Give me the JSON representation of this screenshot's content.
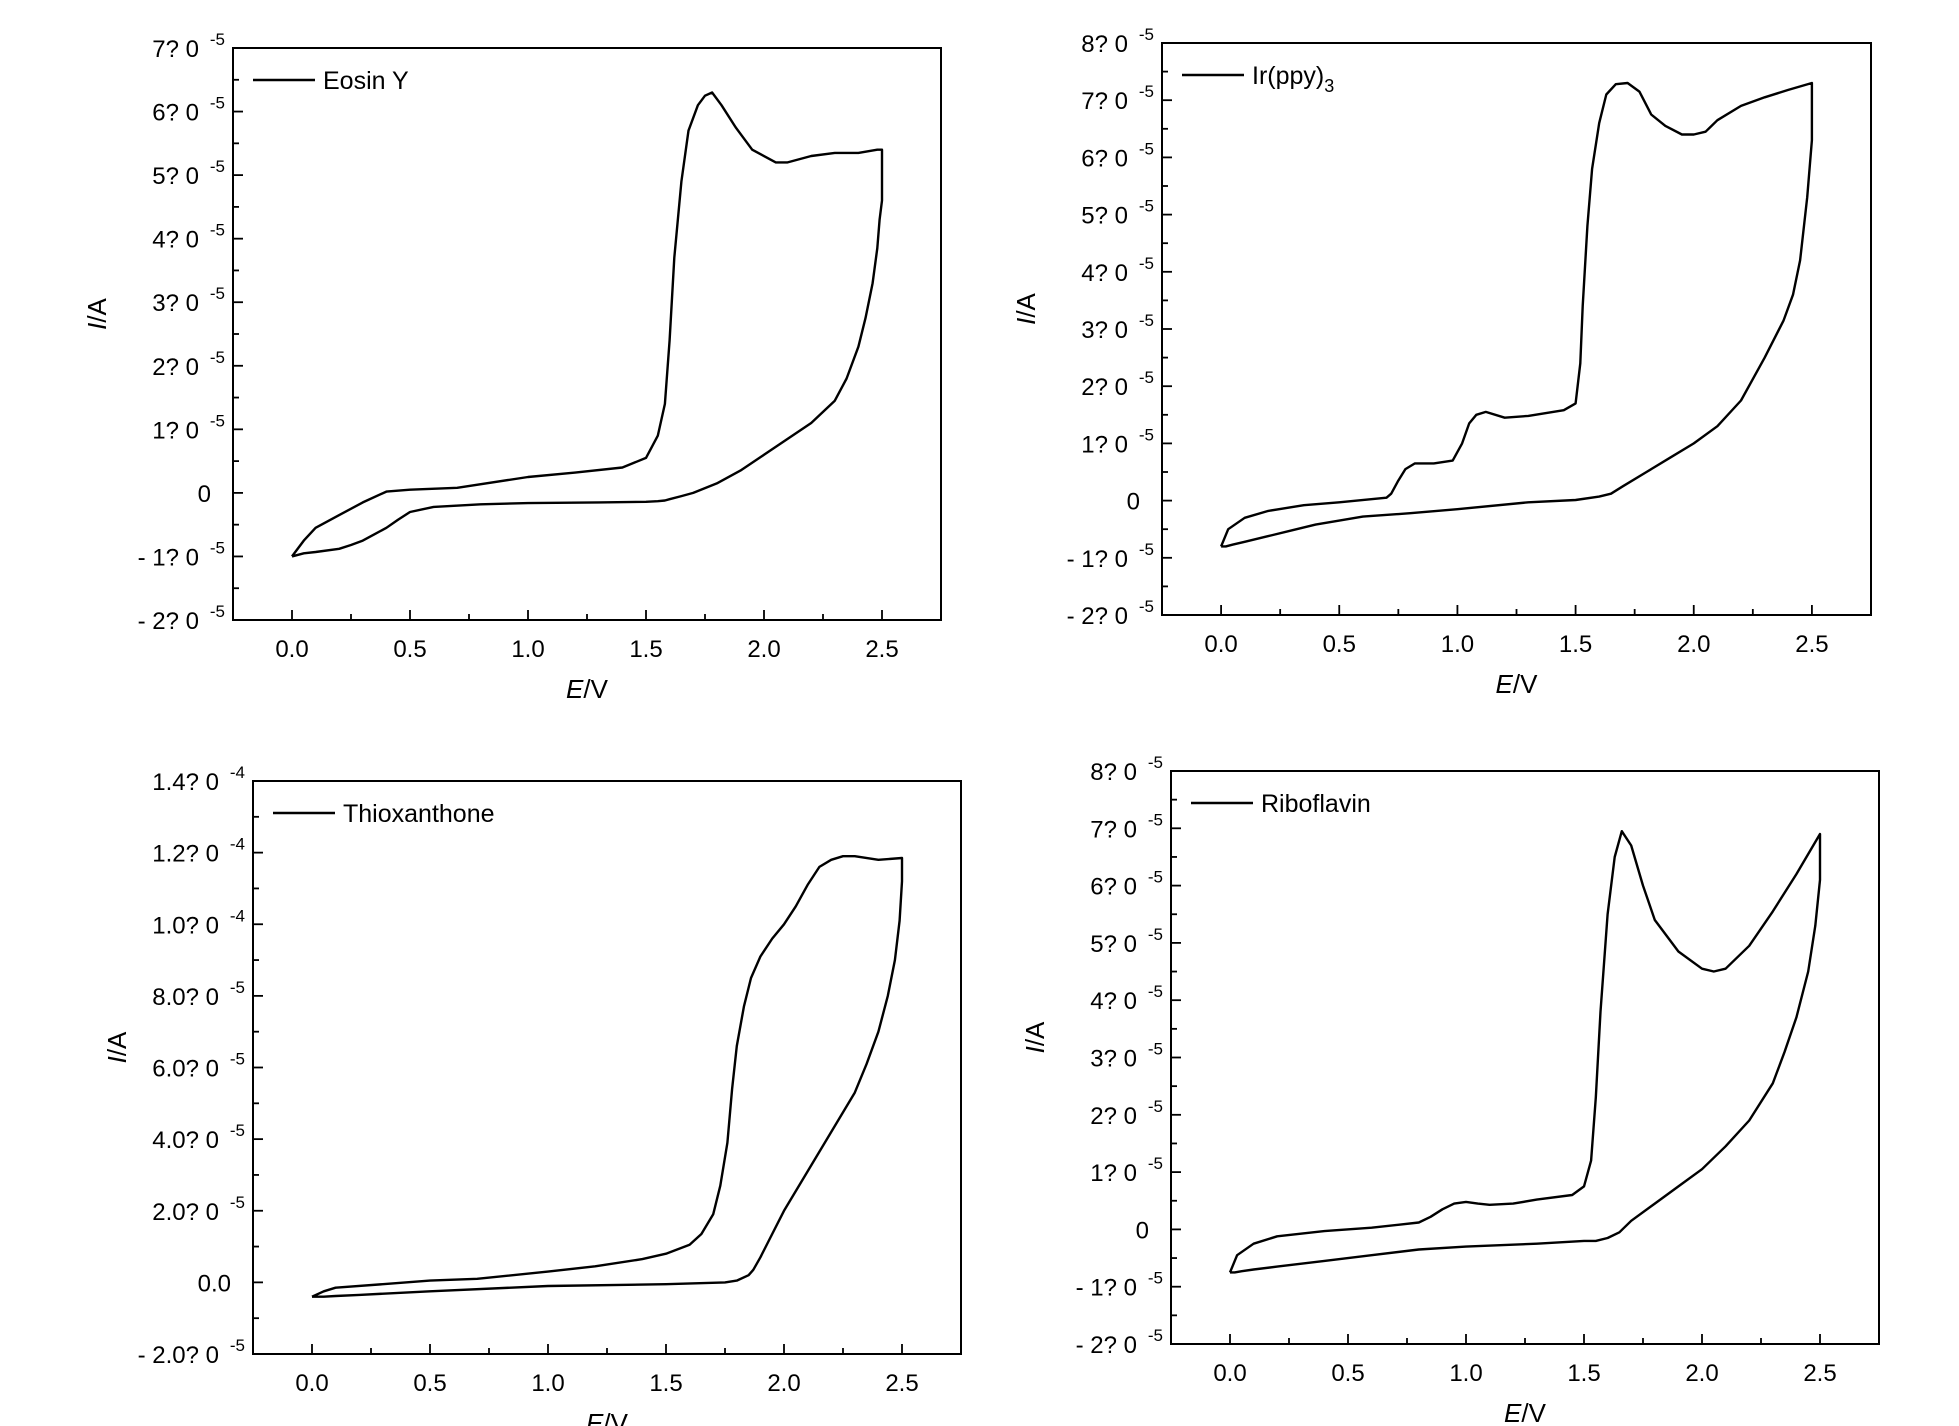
{
  "chart_data": [
    {
      "type": "line",
      "legend": "Eosin Y",
      "xlabel_italic": "E",
      "xlabel_rest": "/V",
      "ylabel_italic": "I",
      "ylabel_rest": "/A",
      "xlim": [
        -0.25,
        2.75
      ],
      "ylim": [
        -2e-05,
        7e-05
      ],
      "x_ticks": [
        {
          "value": 0.0,
          "label": "0.0"
        },
        {
          "value": 0.5,
          "label": "0.5"
        },
        {
          "value": 1.0,
          "label": "1.0"
        },
        {
          "value": 1.5,
          "label": "1.5"
        },
        {
          "value": 2.0,
          "label": "2.0"
        },
        {
          "value": 2.5,
          "label": "2.5"
        }
      ],
      "y_ticks": [
        {
          "value": 7e-05,
          "label": "7?  0",
          "exp": "-5"
        },
        {
          "value": 6e-05,
          "label": "6?  0",
          "exp": "-5"
        },
        {
          "value": 5e-05,
          "label": "5?  0",
          "exp": "-5"
        },
        {
          "value": 4e-05,
          "label": "4?  0",
          "exp": "-5"
        },
        {
          "value": 3e-05,
          "label": "3?  0",
          "exp": "-5"
        },
        {
          "value": 2e-05,
          "label": "2?  0",
          "exp": "-5"
        },
        {
          "value": 1e-05,
          "label": "1?  0",
          "exp": "-5"
        },
        {
          "value": 0,
          "label": "0",
          "exp": ""
        },
        {
          "value": -1e-05,
          "label": "- 1?  0",
          "exp": "-5"
        },
        {
          "value": -2e-05,
          "label": "- 2?  0",
          "exp": "-5"
        }
      ],
      "series": [
        {
          "x": [
            0.0,
            0.05,
            0.1,
            0.2,
            0.3,
            0.4,
            0.5,
            0.7,
            1.0,
            1.2,
            1.4,
            1.5,
            1.55,
            1.58,
            1.6,
            1.62,
            1.65,
            1.68,
            1.72,
            1.75,
            1.78,
            1.82,
            1.88,
            1.95,
            2.05,
            2.1,
            2.2,
            2.3,
            2.4,
            2.48,
            2.5,
            2.5,
            2.49,
            2.48,
            2.46,
            2.43,
            2.4,
            2.35,
            2.3,
            2.2,
            2.1,
            2.0,
            1.9,
            1.8,
            1.7,
            1.65,
            1.6,
            1.58,
            1.55,
            1.5,
            1.3,
            1.0,
            0.8,
            0.6,
            0.5,
            0.45,
            0.4,
            0.35,
            0.3,
            0.25,
            0.2,
            0.1,
            0.05,
            0.02,
            0.0
          ],
          "y": [
            -1e-05,
            -7.5e-06,
            -5.5e-06,
            -3.5e-06,
            -1.5e-06,
            2e-07,
            5e-07,
            8e-07,
            2.5e-06,
            3.2e-06,
            4e-06,
            5.5e-06,
            9e-06,
            1.4e-05,
            2.4e-05,
            3.7e-05,
            4.9e-05,
            5.7e-05,
            6.1e-05,
            6.25e-05,
            6.3e-05,
            6.1e-05,
            5.75e-05,
            5.4e-05,
            5.2e-05,
            5.2e-05,
            5.3e-05,
            5.35e-05,
            5.35e-05,
            5.4e-05,
            5.4e-05,
            4.6e-05,
            4.3e-05,
            3.85e-05,
            3.3e-05,
            2.75e-05,
            2.3e-05,
            1.8e-05,
            1.45e-05,
            1.1e-05,
            8.5e-06,
            6e-06,
            3.5e-06,
            1.5e-06,
            0.0,
            -5e-07,
            -1e-06,
            -1.2e-06,
            -1.3e-06,
            -1.4e-06,
            -1.5e-06,
            -1.6e-06,
            -1.8e-06,
            -2.2e-06,
            -3e-06,
            -4.2e-06,
            -5.5e-06,
            -6.5e-06,
            -7.5e-06,
            -8.2e-06,
            -8.8e-06,
            -9.3e-06,
            -9.5e-06,
            -9.8e-06,
            -1e-05
          ]
        }
      ]
    },
    {
      "type": "line",
      "legend": "Ir(ppy)",
      "legend_sub": "3",
      "xlabel_italic": "E",
      "xlabel_rest": "/V",
      "ylabel_italic": "I",
      "ylabel_rest": "/A",
      "xlim": [
        -0.25,
        2.75
      ],
      "ylim": [
        -2e-05,
        8e-05
      ],
      "x_ticks": [
        {
          "value": 0.0,
          "label": "0.0"
        },
        {
          "value": 0.5,
          "label": "0.5"
        },
        {
          "value": 1.0,
          "label": "1.0"
        },
        {
          "value": 1.5,
          "label": "1.5"
        },
        {
          "value": 2.0,
          "label": "2.0"
        },
        {
          "value": 2.5,
          "label": "2.5"
        }
      ],
      "y_ticks": [
        {
          "value": 8e-05,
          "label": "8?  0",
          "exp": "-5"
        },
        {
          "value": 7e-05,
          "label": "7?  0",
          "exp": "-5"
        },
        {
          "value": 6e-05,
          "label": "6?  0",
          "exp": "-5"
        },
        {
          "value": 5e-05,
          "label": "5?  0",
          "exp": "-5"
        },
        {
          "value": 4e-05,
          "label": "4?  0",
          "exp": "-5"
        },
        {
          "value": 3e-05,
          "label": "3?  0",
          "exp": "-5"
        },
        {
          "value": 2e-05,
          "label": "2?  0",
          "exp": "-5"
        },
        {
          "value": 1e-05,
          "label": "1?  0",
          "exp": "-5"
        },
        {
          "value": 0,
          "label": "0",
          "exp": ""
        },
        {
          "value": -1e-05,
          "label": "- 1?  0",
          "exp": "-5"
        },
        {
          "value": -2e-05,
          "label": "- 2?  0",
          "exp": "-5"
        }
      ],
      "series": [
        {
          "x": [
            0.0,
            0.03,
            0.1,
            0.2,
            0.35,
            0.5,
            0.7,
            0.72,
            0.75,
            0.78,
            0.82,
            0.9,
            0.98,
            1.02,
            1.05,
            1.08,
            1.12,
            1.2,
            1.3,
            1.45,
            1.5,
            1.52,
            1.53,
            1.55,
            1.57,
            1.6,
            1.63,
            1.67,
            1.72,
            1.77,
            1.82,
            1.88,
            1.95,
            2.0,
            2.05,
            2.1,
            2.2,
            2.3,
            2.4,
            2.5,
            2.5,
            2.48,
            2.45,
            2.42,
            2.38,
            2.3,
            2.2,
            2.1,
            2.0,
            1.9,
            1.8,
            1.7,
            1.65,
            1.6,
            1.5,
            1.3,
            1.0,
            0.8,
            0.6,
            0.5,
            0.4,
            0.3,
            0.2,
            0.1,
            0.05,
            0.02,
            0.0
          ],
          "y": [
            -8e-06,
            -5e-06,
            -3e-06,
            -1.8e-06,
            -8e-07,
            -3e-07,
            5e-07,
            1.2e-06,
            3.5e-06,
            5.5e-06,
            6.5e-06,
            6.5e-06,
            7e-06,
            1e-05,
            1.35e-05,
            1.5e-05,
            1.55e-05,
            1.45e-05,
            1.48e-05,
            1.58e-05,
            1.7e-05,
            2.4e-05,
            3.4e-05,
            4.8e-05,
            5.8e-05,
            6.6e-05,
            7.1e-05,
            7.28e-05,
            7.3e-05,
            7.15e-05,
            6.75e-05,
            6.55e-05,
            6.4e-05,
            6.4e-05,
            6.45e-05,
            6.65e-05,
            6.9e-05,
            7.05e-05,
            7.18e-05,
            7.3e-05,
            6.3e-05,
            5.3e-05,
            4.2e-05,
            3.6e-05,
            3.15e-05,
            2.5e-05,
            1.75e-05,
            1.3e-05,
            1e-05,
            7.5e-06,
            5e-06,
            2.5e-06,
            1.2e-06,
            7e-07,
            1e-07,
            -3e-07,
            -1.5e-06,
            -2.2e-06,
            -2.8e-06,
            -3.5e-06,
            -4.2e-06,
            -5.2e-06,
            -6.2e-06,
            -7.2e-06,
            -7.7e-06,
            -8e-06,
            -8e-06
          ]
        }
      ]
    },
    {
      "type": "line",
      "legend": "Thioxanthone",
      "xlabel_italic": "E",
      "xlabel_rest": "/V",
      "ylabel_italic": "I",
      "ylabel_rest": "/A",
      "xlim": [
        -0.25,
        2.75
      ],
      "ylim": [
        -2e-05,
        0.00014
      ],
      "x_ticks": [
        {
          "value": 0.0,
          "label": "0.0"
        },
        {
          "value": 0.5,
          "label": "0.5"
        },
        {
          "value": 1.0,
          "label": "1.0"
        },
        {
          "value": 1.5,
          "label": "1.5"
        },
        {
          "value": 2.0,
          "label": "2.0"
        },
        {
          "value": 2.5,
          "label": "2.5"
        }
      ],
      "y_ticks": [
        {
          "value": 0.00014,
          "label": "1.4?  0",
          "exp": "-4"
        },
        {
          "value": 0.00012,
          "label": "1.2?  0",
          "exp": "-4"
        },
        {
          "value": 0.0001,
          "label": "1.0?  0",
          "exp": "-4"
        },
        {
          "value": 8e-05,
          "label": "8.0?  0",
          "exp": "-5"
        },
        {
          "value": 6e-05,
          "label": "6.0?  0",
          "exp": "-5"
        },
        {
          "value": 4e-05,
          "label": "4.0?  0",
          "exp": "-5"
        },
        {
          "value": 2e-05,
          "label": "2.0?  0",
          "exp": "-5"
        },
        {
          "value": 0,
          "label": "0.0",
          "exp": ""
        },
        {
          "value": -2e-05,
          "label": "- 2.0?  0",
          "exp": "-5"
        }
      ],
      "series": [
        {
          "x": [
            0.0,
            0.05,
            0.1,
            0.3,
            0.5,
            0.7,
            1.0,
            1.2,
            1.4,
            1.5,
            1.6,
            1.65,
            1.7,
            1.73,
            1.76,
            1.78,
            1.8,
            1.83,
            1.86,
            1.9,
            1.95,
            2.0,
            2.05,
            2.1,
            2.15,
            2.2,
            2.25,
            2.3,
            2.4,
            2.5,
            2.5,
            2.49,
            2.47,
            2.44,
            2.4,
            2.35,
            2.3,
            2.2,
            2.1,
            2.0,
            1.95,
            1.9,
            1.87,
            1.85,
            1.8,
            1.75,
            1.5,
            1.0,
            0.5,
            0.2,
            0.1,
            0.05,
            0.0
          ],
          "y": [
            -4e-06,
            -2.5e-06,
            -1.5e-06,
            -5e-07,
            5e-07,
            1e-06,
            3e-06,
            4.5e-06,
            6.5e-06,
            8e-06,
            1.05e-05,
            1.35e-05,
            1.9e-05,
            2.7e-05,
            3.9e-05,
            5.4e-05,
            6.6e-05,
            7.7e-05,
            8.5e-05,
            9.1e-05,
            9.6e-05,
            0.0001,
            0.000105,
            0.000111,
            0.000116,
            0.000118,
            0.000119,
            0.000119,
            0.000118,
            0.0001185,
            0.000112,
            0.000101,
            9e-05,
            8e-05,
            7e-05,
            6.1e-05,
            5.3e-05,
            4.2e-05,
            3.1e-05,
            2e-05,
            1.35e-05,
            7e-06,
            3.5e-06,
            2e-06,
            5e-07,
            0.0,
            -5e-07,
            -1e-06,
            -2.5e-06,
            -3.5e-06,
            -3.8e-06,
            -4e-06,
            -4e-06
          ]
        }
      ]
    },
    {
      "type": "line",
      "legend": "Riboflavin",
      "xlabel_italic": "E",
      "xlabel_rest": "/V",
      "ylabel_italic": "I",
      "ylabel_rest": "/A",
      "xlim": [
        -0.25,
        2.75
      ],
      "ylim": [
        -2e-05,
        8e-05
      ],
      "x_ticks": [
        {
          "value": 0.0,
          "label": "0.0"
        },
        {
          "value": 0.5,
          "label": "0.5"
        },
        {
          "value": 1.0,
          "label": "1.0"
        },
        {
          "value": 1.5,
          "label": "1.5"
        },
        {
          "value": 2.0,
          "label": "2.0"
        },
        {
          "value": 2.5,
          "label": "2.5"
        }
      ],
      "y_ticks": [
        {
          "value": 8e-05,
          "label": "8?  0",
          "exp": "-5"
        },
        {
          "value": 7e-05,
          "label": "7?  0",
          "exp": "-5"
        },
        {
          "value": 6e-05,
          "label": "6?  0",
          "exp": "-5"
        },
        {
          "value": 5e-05,
          "label": "5?  0",
          "exp": "-5"
        },
        {
          "value": 4e-05,
          "label": "4?  0",
          "exp": "-5"
        },
        {
          "value": 3e-05,
          "label": "3?  0",
          "exp": "-5"
        },
        {
          "value": 2e-05,
          "label": "2?  0",
          "exp": "-5"
        },
        {
          "value": 1e-05,
          "label": "1?  0",
          "exp": "-5"
        },
        {
          "value": 0,
          "label": "0",
          "exp": ""
        },
        {
          "value": -1e-05,
          "label": "- 1?  0",
          "exp": "-5"
        },
        {
          "value": -2e-05,
          "label": "- 2?  0",
          "exp": "-5"
        }
      ],
      "series": [
        {
          "x": [
            0.0,
            0.03,
            0.1,
            0.2,
            0.4,
            0.6,
            0.8,
            0.85,
            0.9,
            0.95,
            1.0,
            1.05,
            1.1,
            1.2,
            1.3,
            1.45,
            1.5,
            1.53,
            1.55,
            1.57,
            1.6,
            1.63,
            1.66,
            1.7,
            1.75,
            1.8,
            1.9,
            2.0,
            2.05,
            2.1,
            2.2,
            2.3,
            2.4,
            2.5,
            2.5,
            2.48,
            2.45,
            2.4,
            2.35,
            2.3,
            2.2,
            2.1,
            2.0,
            1.9,
            1.8,
            1.7,
            1.65,
            1.6,
            1.55,
            1.5,
            1.3,
            1.0,
            0.8,
            0.6,
            0.4,
            0.2,
            0.1,
            0.05,
            0.02,
            0.0
          ],
          "y": [
            -7.5e-06,
            -4.5e-06,
            -2.5e-06,
            -1.2e-06,
            -3e-07,
            3e-07,
            1.2e-06,
            2.2e-06,
            3.5e-06,
            4.5e-06,
            4.8e-06,
            4.5e-06,
            4.3e-06,
            4.5e-06,
            5.2e-06,
            6e-06,
            7.5e-06,
            1.2e-05,
            2.3e-05,
            3.8e-05,
            5.5e-05,
            6.5e-05,
            6.95e-05,
            6.7e-05,
            6e-05,
            5.4e-05,
            4.85e-05,
            4.55e-05,
            4.5e-05,
            4.55e-05,
            4.95e-05,
            5.55e-05,
            6.2e-05,
            6.9e-05,
            6.1e-05,
            5.3e-05,
            4.5e-05,
            3.7e-05,
            3.1e-05,
            2.55e-05,
            1.9e-05,
            1.45e-05,
            1.05e-05,
            7.5e-06,
            4.5e-06,
            1.5e-06,
            -5e-07,
            -1.5e-06,
            -2e-06,
            -2e-06,
            -2.5e-06,
            -3e-06,
            -3.5e-06,
            -4.5e-06,
            -5.5e-06,
            -6.5e-06,
            -7e-06,
            -7.3e-06,
            -7.5e-06,
            -7.5e-06
          ]
        }
      ]
    }
  ]
}
